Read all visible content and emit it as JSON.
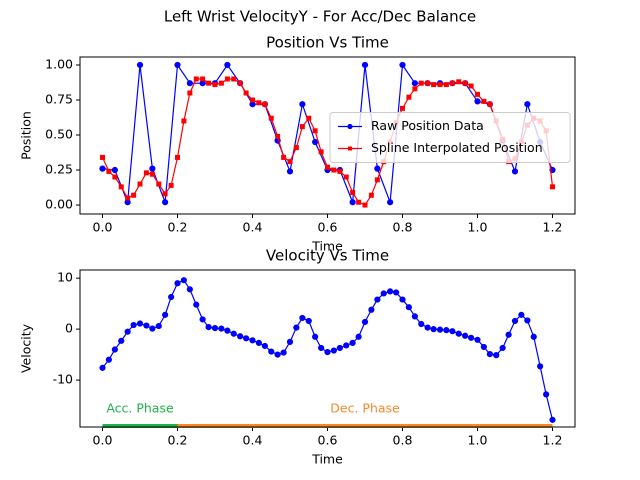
{
  "title": "Left Wrist VelocityY - For Acc/Dec Balance",
  "chart_data": [
    {
      "type": "line",
      "title": "Position Vs Time",
      "x_label": "Time",
      "y_label": "Position",
      "xlim": [
        -0.06,
        1.26
      ],
      "ylim": [
        -0.064,
        1.057
      ],
      "xticks": [
        {
          "value": 0,
          "label": "0.0"
        },
        0.2,
        0.4,
        0.6,
        0.8,
        {
          "value": 1,
          "label": "1.0"
        },
        1.2
      ],
      "yticks": [
        {
          "value": 0,
          "label": "0.00"
        },
        {
          "value": 0.25,
          "label": "0.25"
        },
        {
          "value": 0.5,
          "label": "0.50"
        },
        {
          "value": 0.75,
          "label": "0.75"
        },
        {
          "value": 1,
          "label": "1.00"
        }
      ],
      "legend": "center right",
      "series": [
        {
          "name": "Raw Position Data",
          "color": "#0000ff",
          "marker": "circle",
          "x": [
            0,
            0.033,
            0.067,
            0.1,
            0.133,
            0.167,
            0.2,
            0.233,
            0.267,
            0.3,
            0.333,
            0.367,
            0.4,
            0.433,
            0.467,
            0.5,
            0.533,
            0.567,
            0.6,
            0.633,
            0.667,
            0.7,
            0.733,
            0.767,
            0.8,
            0.833,
            0.867,
            0.9,
            0.933,
            0.967,
            1,
            1.033,
            1.067,
            1.1,
            1.133,
            1.167,
            1.2
          ],
          "values": [
            0.26,
            0.25,
            0.02,
            1.0,
            0.26,
            0.02,
            1.0,
            0.87,
            0.87,
            0.87,
            1.0,
            0.87,
            0.72,
            0.72,
            0.46,
            0.24,
            0.72,
            0.45,
            0.25,
            0.25,
            0.02,
            1.0,
            0.26,
            0.02,
            1.0,
            0.87,
            0.87,
            0.87,
            0.87,
            0.87,
            0.74,
            0.72,
            0.46,
            0.24,
            0.72,
            0.45,
            0.25
          ]
        },
        {
          "name": "Spline Interpolated Position",
          "color": "#ff0000",
          "marker": "square",
          "x": [
            0,
            0.017,
            0.033,
            0.05,
            0.067,
            0.083,
            0.1,
            0.117,
            0.133,
            0.15,
            0.167,
            0.183,
            0.2,
            0.217,
            0.233,
            0.25,
            0.267,
            0.283,
            0.3,
            0.317,
            0.333,
            0.35,
            0.367,
            0.383,
            0.4,
            0.417,
            0.433,
            0.45,
            0.467,
            0.483,
            0.5,
            0.517,
            0.533,
            0.55,
            0.567,
            0.583,
            0.6,
            0.617,
            0.633,
            0.65,
            0.667,
            0.683,
            0.7,
            0.717,
            0.733,
            0.75,
            0.767,
            0.783,
            0.8,
            0.817,
            0.833,
            0.85,
            0.867,
            0.883,
            0.9,
            0.917,
            0.933,
            0.95,
            0.967,
            0.983,
            1,
            1.017,
            1.033,
            1.05,
            1.067,
            1.083,
            1.1,
            1.117,
            1.133,
            1.15,
            1.167,
            1.183,
            1.2
          ],
          "values": [
            0.34,
            0.24,
            0.2,
            0.13,
            0.05,
            0.07,
            0.15,
            0.23,
            0.22,
            0.15,
            0.08,
            0.14,
            0.34,
            0.6,
            0.8,
            0.9,
            0.9,
            0.87,
            0.86,
            0.87,
            0.9,
            0.9,
            0.87,
            0.8,
            0.75,
            0.73,
            0.72,
            0.62,
            0.49,
            0.34,
            0.31,
            0.41,
            0.56,
            0.62,
            0.53,
            0.38,
            0.27,
            0.25,
            0.24,
            0.2,
            0.09,
            0.02,
            0.0,
            0.07,
            0.18,
            0.31,
            0.45,
            0.59,
            0.69,
            0.77,
            0.83,
            0.87,
            0.87,
            0.86,
            0.86,
            0.86,
            0.87,
            0.88,
            0.87,
            0.85,
            0.79,
            0.74,
            0.72,
            0.6,
            0.47,
            0.31,
            0.33,
            0.45,
            0.57,
            0.62,
            0.6,
            0.53,
            0.13
          ]
        }
      ]
    },
    {
      "type": "line",
      "title": "Velocity Vs Time",
      "x_label": "Time",
      "y_label": "Velocity",
      "xlim": [
        -0.06,
        1.26
      ],
      "ylim": [
        -19.2,
        11.6
      ],
      "xticks": [
        {
          "value": 0,
          "label": "0.0"
        },
        0.2,
        0.4,
        0.6,
        0.8,
        {
          "value": 1,
          "label": "1.0"
        },
        1.2
      ],
      "yticks": [
        -10,
        0,
        10
      ],
      "series": [
        {
          "color": "#0000ff",
          "marker": "circle",
          "x": [
            0,
            0.017,
            0.033,
            0.05,
            0.067,
            0.083,
            0.1,
            0.117,
            0.133,
            0.15,
            0.167,
            0.183,
            0.2,
            0.217,
            0.233,
            0.25,
            0.267,
            0.283,
            0.3,
            0.317,
            0.333,
            0.35,
            0.367,
            0.383,
            0.4,
            0.417,
            0.433,
            0.45,
            0.467,
            0.483,
            0.5,
            0.517,
            0.533,
            0.55,
            0.567,
            0.583,
            0.6,
            0.617,
            0.633,
            0.65,
            0.667,
            0.683,
            0.7,
            0.717,
            0.733,
            0.75,
            0.767,
            0.783,
            0.8,
            0.817,
            0.833,
            0.85,
            0.867,
            0.883,
            0.9,
            0.917,
            0.933,
            0.95,
            0.967,
            0.983,
            1,
            1.017,
            1.033,
            1.05,
            1.067,
            1.083,
            1.1,
            1.117,
            1.133,
            1.15,
            1.167,
            1.183,
            1.2
          ],
          "values": [
            -7.6,
            -6,
            -4,
            -2.3,
            -0.5,
            0.8,
            1.1,
            0.7,
            0.1,
            0.6,
            2.8,
            6.3,
            9,
            9.6,
            7.8,
            4.8,
            1.9,
            0.4,
            0.2,
            0.1,
            -0.3,
            -0.9,
            -1.4,
            -1.8,
            -2.2,
            -2.7,
            -3.3,
            -4.4,
            -5,
            -4.6,
            -2.5,
            0.3,
            2.2,
            1.6,
            -1.5,
            -3.7,
            -4.5,
            -4.2,
            -3.7,
            -3.2,
            -2.7,
            -1.5,
            1.4,
            3.8,
            5.8,
            7,
            7.4,
            7.2,
            5.8,
            4.3,
            2.5,
            1,
            0.3,
            0,
            -0.1,
            -0.2,
            -0.4,
            -0.9,
            -1.3,
            -1.7,
            -2.1,
            -3.5,
            -4.9,
            -5.1,
            -3.7,
            -1.1,
            1.6,
            2.8,
            1.7,
            -1.5,
            -7.3,
            -12.8,
            -17.8
          ]
        }
      ],
      "spans": [
        {
          "label": "Acc. Phase",
          "start": 0,
          "end": 0.2,
          "color": "#22b14c"
        },
        {
          "label": "Dec. Phase",
          "start": 0.2,
          "end": 1.2,
          "color": "#f58a2c"
        }
      ]
    }
  ]
}
